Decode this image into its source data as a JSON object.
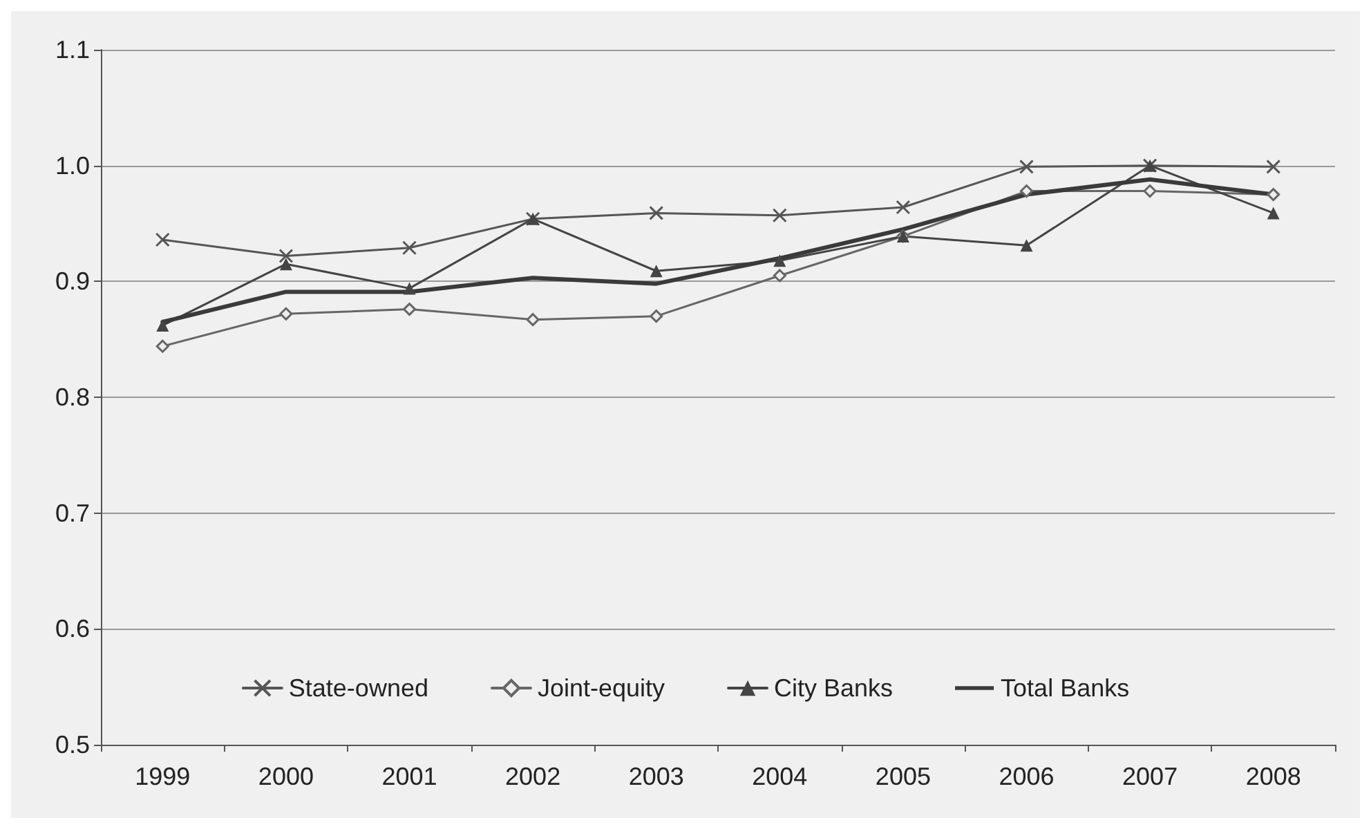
{
  "chart_data": {
    "type": "line",
    "categories": [
      "1999",
      "2000",
      "2001",
      "2002",
      "2003",
      "2004",
      "2005",
      "2006",
      "2007",
      "2008"
    ],
    "series": [
      {
        "name": "State-owned",
        "color": "#555555",
        "marker": "cross",
        "values": [
          0.936,
          0.922,
          0.929,
          0.954,
          0.959,
          0.957,
          0.964,
          0.999,
          1.0,
          0.999
        ]
      },
      {
        "name": "Joint-equity",
        "color": "#666666",
        "marker": "diamond",
        "values": [
          0.844,
          0.872,
          0.876,
          0.867,
          0.87,
          0.905,
          0.939,
          0.978,
          0.978,
          0.975
        ]
      },
      {
        "name": "City Banks",
        "color": "#444444",
        "marker": "triangle",
        "values": [
          0.862,
          0.915,
          0.894,
          0.954,
          0.909,
          0.918,
          0.939,
          0.931,
          1.0,
          0.959
        ]
      },
      {
        "name": "Total Banks",
        "color": "#3a3a3a",
        "marker": "none",
        "values": [
          0.865,
          0.891,
          0.891,
          0.903,
          0.898,
          0.92,
          0.945,
          0.975,
          0.988,
          0.975
        ]
      }
    ],
    "ylim": [
      0.5,
      1.1
    ],
    "yticks": [
      {
        "value": 0.5,
        "label": "0.5"
      },
      {
        "value": 0.6,
        "label": "0.6"
      },
      {
        "value": 0.7,
        "label": "0.7"
      },
      {
        "value": 0.8,
        "label": "0.8"
      },
      {
        "value": 0.9,
        "label": "0.9"
      },
      {
        "value": 1.0,
        "label": "1.0"
      },
      {
        "value": 1.1,
        "label": "1.1"
      }
    ],
    "grid": "y",
    "legend": "bottom",
    "line_style": "solid"
  }
}
